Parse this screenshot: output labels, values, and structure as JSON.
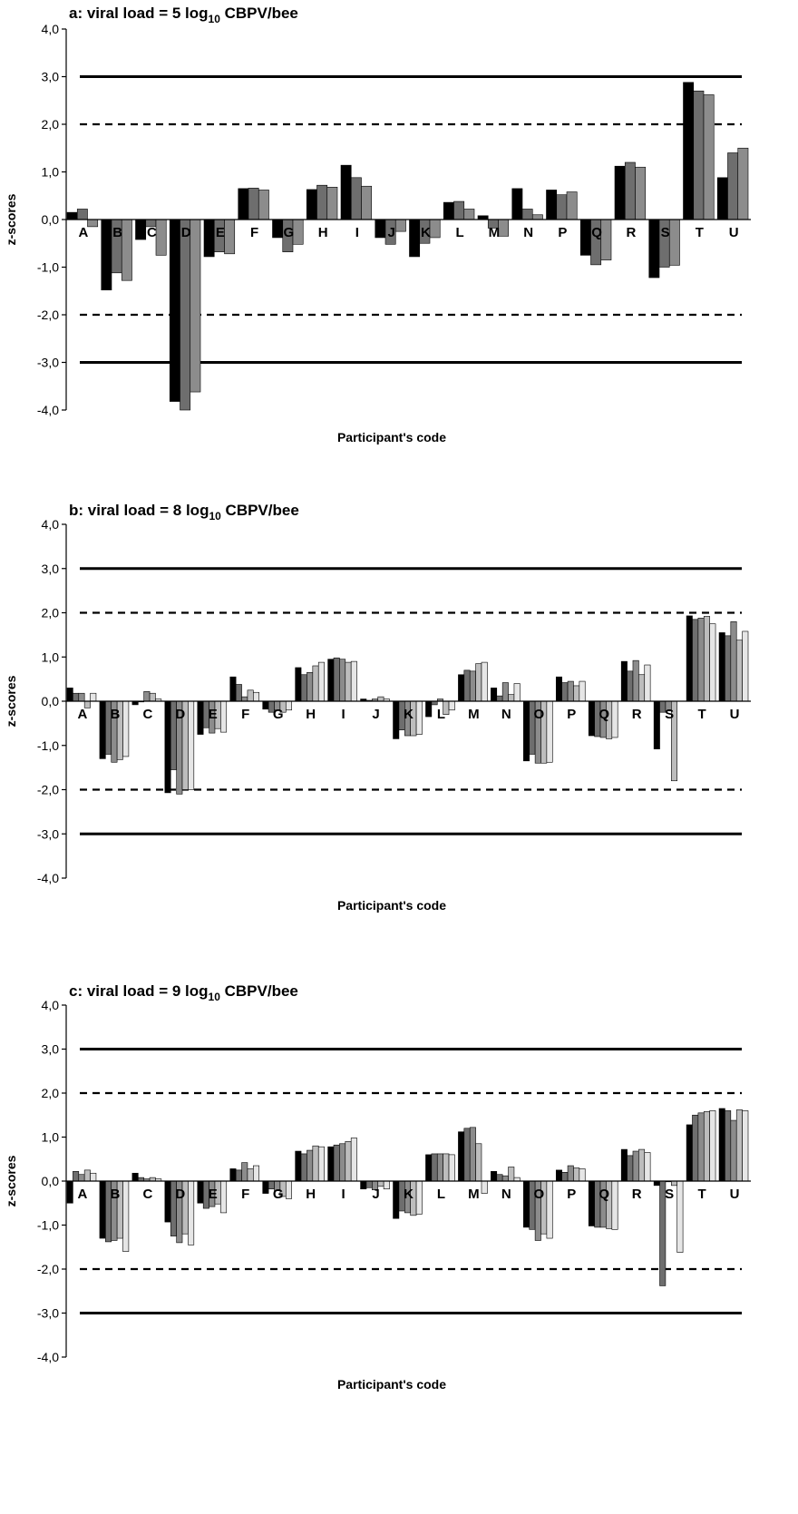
{
  "chart_data": [
    {
      "type": "bar",
      "title": {
        "main": "a: viral load = 5 log",
        "sub": "10",
        "tail": " CBPV/bee"
      },
      "ylabel": "z-scores",
      "xlabel": "Participant's code",
      "ylim": [
        -4,
        4
      ],
      "yticks": [
        "4,0",
        "3,0",
        "2,0",
        "1,0",
        "0,0",
        "-1,0",
        "-2,0",
        "-3,0",
        "-4,0"
      ],
      "reference_lines": [
        {
          "y": 3,
          "style": "solid"
        },
        {
          "y": 2,
          "style": "dashed"
        },
        {
          "y": -2,
          "style": "dashed"
        },
        {
          "y": -3,
          "style": "solid"
        }
      ],
      "series_colors": [
        "#000000",
        "#6e6e6e",
        "#8c8c8c",
        "#dcdcdc"
      ],
      "categories": [
        "A",
        "B",
        "C",
        "D",
        "E",
        "F",
        "G",
        "H",
        "I",
        "J",
        "K",
        "L",
        "M",
        "N",
        "P",
        "Q",
        "R",
        "S",
        "T",
        "U"
      ],
      "values": [
        [
          0.15,
          0.22,
          -0.15
        ],
        [
          -1.48,
          -1.12,
          -1.28
        ],
        [
          -0.42,
          -0.15,
          -0.75
        ],
        [
          -3.82,
          -4.0,
          -3.62
        ],
        [
          -0.78,
          -0.68,
          -0.72
        ],
        [
          0.65,
          0.66,
          0.62
        ],
        [
          -0.38,
          -0.68,
          -0.52
        ],
        [
          0.63,
          0.72,
          0.68
        ],
        [
          1.14,
          0.88,
          0.7
        ],
        [
          -0.38,
          -0.52,
          -0.25
        ],
        [
          -0.78,
          -0.5,
          -0.38
        ],
        [
          0.36,
          0.38,
          0.22
        ],
        [
          0.08,
          -0.18,
          -0.35
        ],
        [
          0.65,
          0.22,
          0.1
        ],
        [
          0.62,
          0.52,
          0.58
        ],
        [
          -0.75,
          -0.95,
          -0.85
        ],
        [
          1.12,
          1.2,
          1.1
        ],
        [
          -1.22,
          -1.0,
          -0.96
        ],
        [
          2.88,
          2.7,
          2.62
        ],
        [
          0.88,
          1.4,
          1.5
        ]
      ]
    },
    {
      "type": "bar",
      "title": {
        "main": "b: viral load = 8 log",
        "sub": "10",
        "tail": " CBPV/bee"
      },
      "ylabel": "z-scores",
      "xlabel": "Participant's code",
      "ylim": [
        -4,
        4
      ],
      "yticks": [
        "4,0",
        "3,0",
        "2,0",
        "1,0",
        "0,0",
        "-1,0",
        "-2,0",
        "-3,0",
        "-4,0"
      ],
      "reference_lines": [
        {
          "y": 3,
          "style": "solid"
        },
        {
          "y": 2,
          "style": "dashed"
        },
        {
          "y": -2,
          "style": "dashed"
        },
        {
          "y": -3,
          "style": "solid"
        }
      ],
      "series_colors": [
        "#000000",
        "#6e6e6e",
        "#8c8c8c",
        "#bdbdbd",
        "#e6e6e6",
        "#ffffff"
      ],
      "categories": [
        "A",
        "B",
        "C",
        "D",
        "E",
        "F",
        "G",
        "H",
        "I",
        "J",
        "K",
        "L",
        "M",
        "N",
        "O",
        "P",
        "Q",
        "R",
        "S",
        "T",
        "U"
      ],
      "values": [
        [
          0.3,
          0.18,
          0.18,
          -0.15,
          0.18
        ],
        [
          -1.3,
          -1.2,
          -1.38,
          -1.32,
          -1.25
        ],
        [
          -0.08,
          0.0,
          0.22,
          0.18,
          0.05
        ],
        [
          -2.07,
          -1.55,
          -2.1,
          -2.0,
          -2.0
        ],
        [
          -0.75,
          -0.6,
          -0.72,
          -0.62,
          -0.7
        ],
        [
          0.55,
          0.38,
          0.1,
          0.25,
          0.2
        ],
        [
          -0.18,
          -0.25,
          -0.2,
          -0.25,
          -0.2
        ],
        [
          0.76,
          0.6,
          0.65,
          0.8,
          0.88
        ],
        [
          0.95,
          0.98,
          0.95,
          0.88,
          0.9
        ],
        [
          0.05,
          0.02,
          0.05,
          0.1,
          0.05
        ],
        [
          -0.85,
          -0.65,
          -0.78,
          -0.78,
          -0.75
        ],
        [
          -0.35,
          -0.08,
          0.05,
          -0.3,
          -0.2
        ],
        [
          0.6,
          0.7,
          0.68,
          0.85,
          0.88
        ],
        [
          0.3,
          0.12,
          0.42,
          0.15,
          0.4
        ],
        [
          -1.35,
          -1.2,
          -1.4,
          -1.4,
          -1.38
        ],
        [
          0.55,
          0.42,
          0.45,
          0.35,
          0.45
        ],
        [
          -0.78,
          -0.8,
          -0.82,
          -0.85,
          -0.82
        ],
        [
          0.9,
          0.68,
          0.92,
          0.6,
          0.82
        ],
        [
          -1.08,
          -0.25,
          -0.22,
          -1.8,
          null
        ],
        [
          1.93,
          1.85,
          1.88,
          1.92,
          1.75
        ],
        [
          1.55,
          1.48,
          1.8,
          1.38,
          1.58
        ]
      ]
    },
    {
      "type": "bar",
      "title": {
        "main": "c: viral load = 9 log",
        "sub": "10",
        "tail": " CBPV/bee"
      },
      "ylabel": "z-scores",
      "xlabel": "Participant's code",
      "ylim": [
        -4,
        4
      ],
      "yticks": [
        "4,0",
        "3,0",
        "2,0",
        "1,0",
        "0,0",
        "-1,0",
        "-2,0",
        "-3,0",
        "-4,0"
      ],
      "reference_lines": [
        {
          "y": 3,
          "style": "solid"
        },
        {
          "y": 2,
          "style": "dashed"
        },
        {
          "y": -2,
          "style": "dashed"
        },
        {
          "y": -3,
          "style": "solid"
        }
      ],
      "series_colors": [
        "#000000",
        "#6e6e6e",
        "#8c8c8c",
        "#bdbdbd",
        "#e6e6e6",
        "#ffffff"
      ],
      "categories": [
        "A",
        "B",
        "C",
        "D",
        "E",
        "F",
        "G",
        "H",
        "I",
        "J",
        "K",
        "L",
        "M",
        "N",
        "O",
        "P",
        "Q",
        "R",
        "S",
        "T",
        "U"
      ],
      "values": [
        [
          -0.5,
          0.22,
          0.15,
          0.25,
          0.18
        ],
        [
          -1.3,
          -1.38,
          -1.35,
          -1.3,
          -1.6
        ],
        [
          0.18,
          0.08,
          0.05,
          0.08,
          0.05
        ],
        [
          -0.93,
          -1.25,
          -1.4,
          -1.2,
          -1.45
        ],
        [
          -0.5,
          -0.62,
          -0.58,
          -0.52,
          -0.72
        ],
        [
          0.28,
          0.25,
          0.42,
          0.28,
          0.35
        ],
        [
          -0.28,
          -0.18,
          -0.22,
          -0.35,
          -0.4
        ],
        [
          0.68,
          0.62,
          0.7,
          0.8,
          0.78
        ],
        [
          0.78,
          0.82,
          0.85,
          0.9,
          0.98
        ],
        [
          -0.18,
          -0.15,
          -0.2,
          -0.12,
          -0.18
        ],
        [
          -0.85,
          -0.68,
          -0.72,
          -0.78,
          -0.75
        ],
        [
          0.6,
          0.62,
          0.62,
          0.62,
          0.6
        ],
        [
          1.12,
          1.2,
          1.22,
          0.85,
          -0.28
        ],
        [
          0.22,
          0.15,
          0.12,
          0.32,
          0.08
        ],
        [
          -1.05,
          -1.1,
          -1.35,
          -1.2,
          -1.3
        ],
        [
          0.25,
          0.2,
          0.35,
          0.3,
          0.28
        ],
        [
          -1.02,
          -1.05,
          -1.05,
          -1.08,
          -1.1
        ],
        [
          0.72,
          0.58,
          0.68,
          0.72,
          0.65
        ],
        [
          -0.1,
          -2.38,
          0.0,
          -0.1,
          -1.62
        ],
        [
          1.28,
          1.5,
          1.55,
          1.58,
          1.6
        ],
        [
          1.65,
          1.6,
          1.38,
          1.62,
          1.6
        ]
      ]
    }
  ]
}
